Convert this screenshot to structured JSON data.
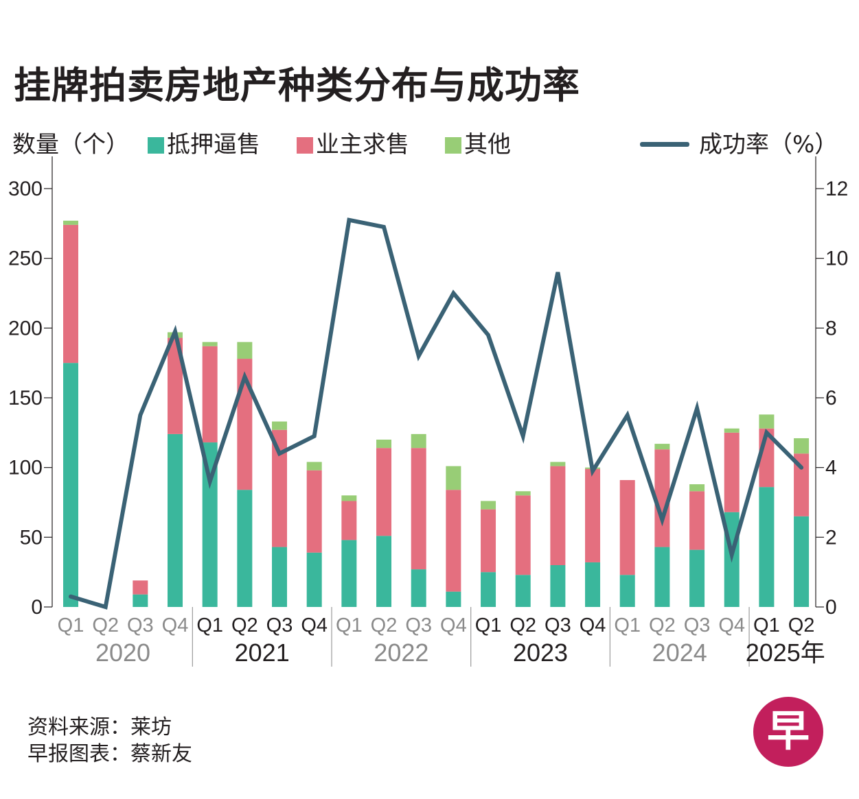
{
  "title": "挂牌拍卖房地产种类分布与成功率",
  "legend": {
    "left_axis_label": "数量（个）",
    "items": [
      {
        "label": "抵押逼售",
        "color": "#3ab79c"
      },
      {
        "label": "业主求售",
        "color": "#e46f7f"
      },
      {
        "label": "其他",
        "color": "#98cd76"
      }
    ],
    "line_label": "成功率（%）",
    "line_color": "#3a6275"
  },
  "footer": {
    "source": "资料来源：莱坊",
    "credit": "早报图表：蔡新友"
  },
  "logo_text": "早",
  "chart_data": {
    "type": "bar",
    "stacked": true,
    "categories": [
      "Q1",
      "Q2",
      "Q3",
      "Q4",
      "Q1",
      "Q2",
      "Q3",
      "Q4",
      "Q1",
      "Q2",
      "Q3",
      "Q4",
      "Q1",
      "Q2",
      "Q3",
      "Q4",
      "Q1",
      "Q2",
      "Q3",
      "Q4",
      "Q1",
      "Q2"
    ],
    "years": [
      {
        "label": "2020",
        "count": 4,
        "style": "grey"
      },
      {
        "label": "2021",
        "count": 4,
        "style": "dark"
      },
      {
        "label": "2022",
        "count": 4,
        "style": "grey"
      },
      {
        "label": "2023",
        "count": 4,
        "style": "dark"
      },
      {
        "label": "2024",
        "count": 4,
        "style": "grey"
      },
      {
        "label": "2025年",
        "count": 2,
        "style": "dark"
      }
    ],
    "series": [
      {
        "name": "抵押逼售",
        "color": "#3ab79c",
        "values": [
          175,
          0,
          9,
          124,
          118,
          84,
          43,
          39,
          48,
          51,
          27,
          11,
          25,
          23,
          30,
          32,
          23,
          43,
          41,
          68,
          86,
          65
        ]
      },
      {
        "name": "业主求售",
        "color": "#e46f7f",
        "values": [
          99,
          0,
          10,
          69,
          69,
          94,
          84,
          59,
          28,
          63,
          87,
          73,
          45,
          57,
          71,
          67,
          68,
          70,
          42,
          57,
          42,
          45
        ]
      },
      {
        "name": "其他",
        "color": "#98cd76",
        "values": [
          3,
          0,
          0,
          4,
          3,
          12,
          6,
          6,
          4,
          6,
          10,
          17,
          6,
          3,
          3,
          1,
          0,
          4,
          5,
          3,
          10,
          11
        ]
      }
    ],
    "line": {
      "name": "成功率（%）",
      "color": "#3a6275",
      "values": [
        0.3,
        0.0,
        5.5,
        7.9,
        3.6,
        6.6,
        4.4,
        4.9,
        11.1,
        10.9,
        7.2,
        9.0,
        7.8,
        4.9,
        9.6,
        3.9,
        5.5,
        2.5,
        5.7,
        1.5,
        5.0,
        4.0
      ]
    },
    "y_left": {
      "min": 0,
      "max": 300,
      "ticks": [
        0,
        50,
        100,
        150,
        200,
        250,
        300
      ]
    },
    "y_right": {
      "min": 0,
      "max": 12,
      "ticks": [
        0,
        2,
        4,
        6,
        8,
        10,
        12
      ]
    }
  }
}
